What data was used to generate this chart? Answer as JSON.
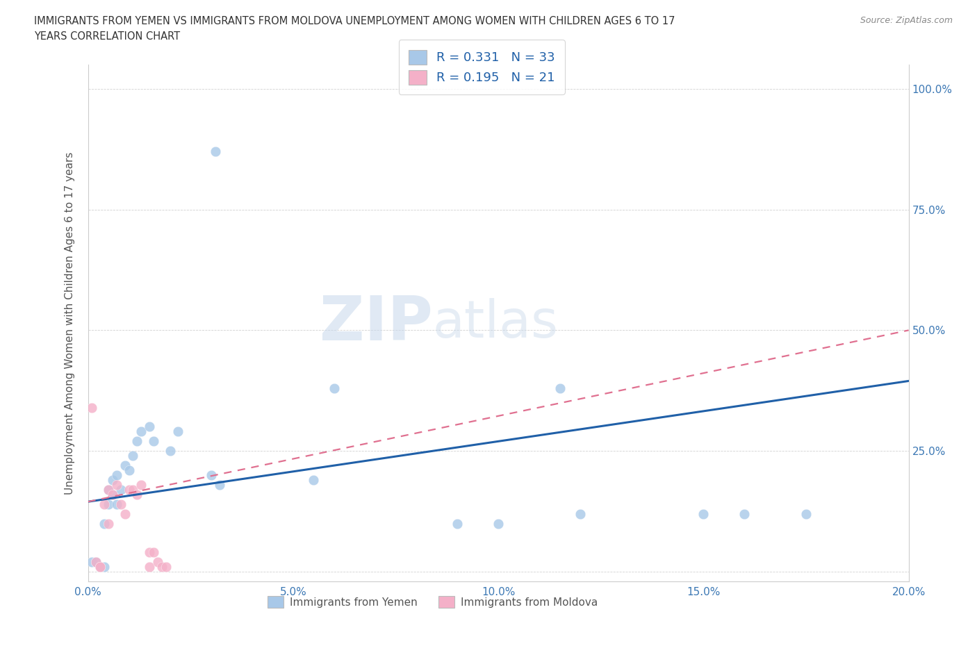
{
  "title_line1": "IMMIGRANTS FROM YEMEN VS IMMIGRANTS FROM MOLDOVA UNEMPLOYMENT AMONG WOMEN WITH CHILDREN AGES 6 TO 17",
  "title_line2": "YEARS CORRELATION CHART",
  "source": "Source: ZipAtlas.com",
  "ylabel_label": "Unemployment Among Women with Children Ages 6 to 17 years",
  "xlim": [
    0.0,
    0.2
  ],
  "ylim": [
    -0.02,
    1.05
  ],
  "xticks": [
    0.0,
    0.05,
    0.1,
    0.15,
    0.2
  ],
  "yticks": [
    0.0,
    0.25,
    0.5,
    0.75,
    1.0
  ],
  "xtick_labels": [
    "0.0%",
    "5.0%",
    "10.0%",
    "15.0%",
    "20.0%"
  ],
  "ytick_labels_right": [
    "",
    "25.0%",
    "50.0%",
    "75.0%",
    "100.0%"
  ],
  "watermark_zip": "ZIP",
  "watermark_atlas": "atlas",
  "yemen_color": "#a8c8e8",
  "moldova_color": "#f4b0c8",
  "yemen_line_color": "#2060a8",
  "moldova_line_color": "#e07090",
  "R_yemen": 0.331,
  "N_yemen": 33,
  "R_moldova": 0.195,
  "N_moldova": 21,
  "yemen_scatter": [
    [
      0.001,
      0.02
    ],
    [
      0.002,
      0.02
    ],
    [
      0.003,
      0.01
    ],
    [
      0.004,
      0.01
    ],
    [
      0.004,
      0.1
    ],
    [
      0.005,
      0.14
    ],
    [
      0.005,
      0.17
    ],
    [
      0.006,
      0.16
    ],
    [
      0.006,
      0.19
    ],
    [
      0.007,
      0.14
    ],
    [
      0.007,
      0.2
    ],
    [
      0.008,
      0.17
    ],
    [
      0.009,
      0.22
    ],
    [
      0.01,
      0.21
    ],
    [
      0.011,
      0.24
    ],
    [
      0.012,
      0.27
    ],
    [
      0.013,
      0.29
    ],
    [
      0.015,
      0.3
    ],
    [
      0.016,
      0.27
    ],
    [
      0.02,
      0.25
    ],
    [
      0.022,
      0.29
    ],
    [
      0.03,
      0.2
    ],
    [
      0.032,
      0.18
    ],
    [
      0.031,
      0.87
    ],
    [
      0.055,
      0.19
    ],
    [
      0.06,
      0.38
    ],
    [
      0.09,
      0.1
    ],
    [
      0.1,
      0.1
    ],
    [
      0.115,
      0.38
    ],
    [
      0.12,
      0.12
    ],
    [
      0.15,
      0.12
    ],
    [
      0.16,
      0.12
    ],
    [
      0.175,
      0.12
    ]
  ],
  "moldova_scatter": [
    [
      0.001,
      0.34
    ],
    [
      0.002,
      0.02
    ],
    [
      0.003,
      0.01
    ],
    [
      0.003,
      0.01
    ],
    [
      0.004,
      0.14
    ],
    [
      0.005,
      0.17
    ],
    [
      0.005,
      0.1
    ],
    [
      0.006,
      0.16
    ],
    [
      0.007,
      0.18
    ],
    [
      0.008,
      0.14
    ],
    [
      0.009,
      0.12
    ],
    [
      0.01,
      0.17
    ],
    [
      0.011,
      0.17
    ],
    [
      0.012,
      0.16
    ],
    [
      0.013,
      0.18
    ],
    [
      0.015,
      0.04
    ],
    [
      0.015,
      0.01
    ],
    [
      0.016,
      0.04
    ],
    [
      0.017,
      0.02
    ],
    [
      0.018,
      0.01
    ],
    [
      0.019,
      0.01
    ]
  ]
}
